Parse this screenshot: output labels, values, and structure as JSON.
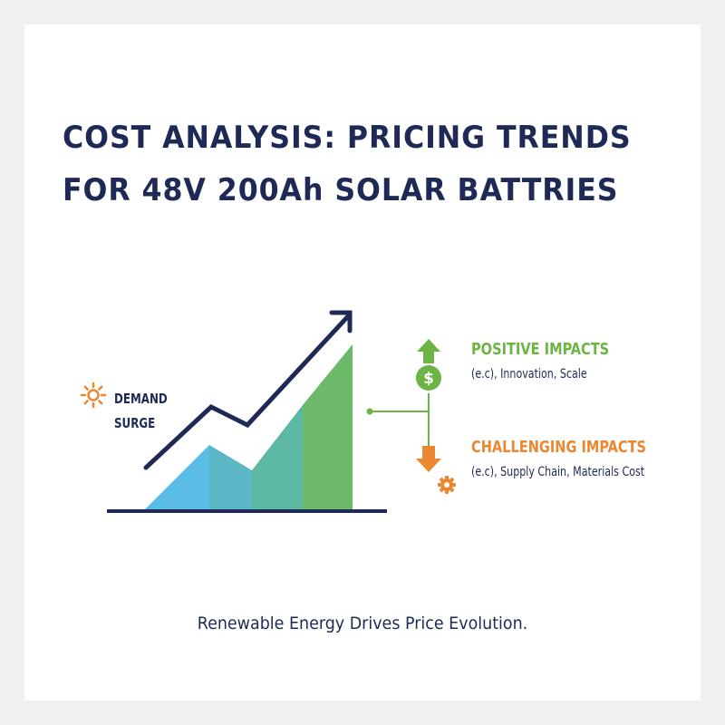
{
  "title": {
    "line1": "COST ANALYSIS: PRICING TRENDS",
    "line2": "FOR 48V 200Ah SOLAR BATTRIES"
  },
  "demand": {
    "line1": "DEMAND",
    "line2": "SURGE",
    "icon": "sun-icon"
  },
  "positive": {
    "title": "POSITIVE IMPACTS",
    "description": "(e.c), Innovation, Scale",
    "icon": "dollar-up-arrow-icon",
    "symbol": "$",
    "color": "#6cb545"
  },
  "challenging": {
    "title": "CHALLENGING IMPACTS",
    "description": "(e.c), Supply Chain, Materials Cost",
    "icon": "gear-down-arrow-icon",
    "color": "#ea8730"
  },
  "footer": "Renewable Energy Drives Price Evolution.",
  "colors": {
    "navy": "#1e2a55",
    "blue": "#5bbde6",
    "teal": "#5cb8a5",
    "green": "#6cb86b"
  }
}
